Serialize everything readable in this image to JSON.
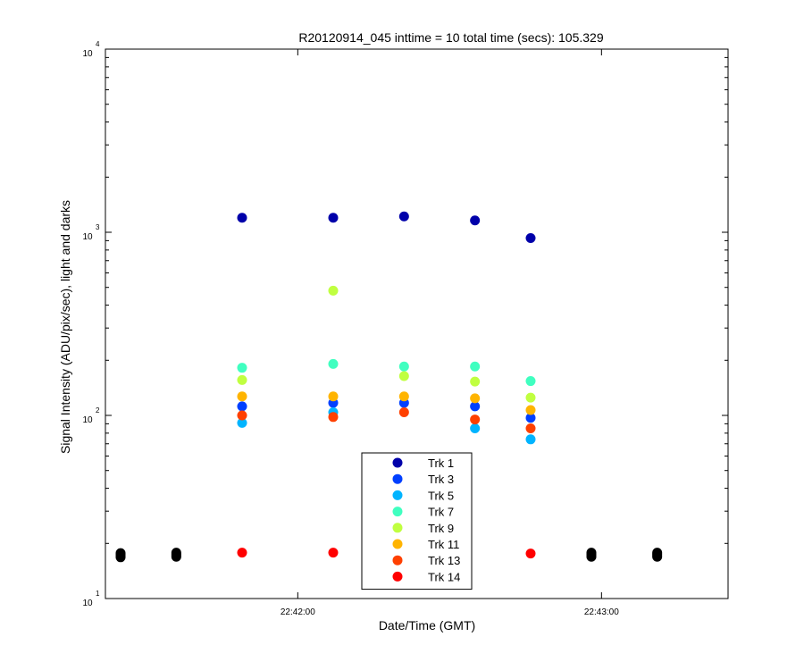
{
  "chart_data": {
    "type": "scatter",
    "title": "R20120914_045 inttime = 10 total time (secs): 105.329",
    "xlabel": "Date/Time (GMT)",
    "ylabel": "Signal Intensity (ADU/pix/sec), light and darks",
    "x_ticks": [
      "22:42:00",
      "22:43:00"
    ],
    "xlim": [
      "22:41:22",
      "22:43:25"
    ],
    "y_scale": "log",
    "ylim": [
      10,
      10000
    ],
    "y_ticks": [
      {
        "value": 10,
        "base": "10",
        "exp": "1"
      },
      {
        "value": 100,
        "base": "10",
        "exp": "2"
      },
      {
        "value": 1000,
        "base": "10",
        "exp": "3"
      },
      {
        "value": 10000,
        "base": "10",
        "exp": "4"
      }
    ],
    "grid": false,
    "legend_position": "bottom-center",
    "series": [
      {
        "name": "Trk 1",
        "color": "#0000aa",
        "x": [
          "22:41:49",
          "22:42:07",
          "22:42:21",
          "22:42:35",
          "22:42:46"
        ],
        "y": [
          1200,
          1200,
          1220,
          1160,
          930
        ]
      },
      {
        "name": "Trk 3",
        "color": "#0040ff",
        "x": [
          "22:41:49",
          "22:42:07",
          "22:42:21",
          "22:42:35",
          "22:42:46"
        ],
        "y": [
          112,
          117,
          117,
          112,
          97
        ]
      },
      {
        "name": "Trk 5",
        "color": "#00b4ff",
        "x": [
          "22:41:49",
          "22:42:07",
          "22:42:35",
          "22:42:46"
        ],
        "y": [
          91,
          104,
          85,
          74
        ]
      },
      {
        "name": "Trk 7",
        "color": "#40ffc0",
        "x": [
          "22:41:49",
          "22:42:07",
          "22:42:21",
          "22:42:35",
          "22:42:46"
        ],
        "y": [
          182,
          191,
          185,
          185,
          154
        ]
      },
      {
        "name": "Trk 9",
        "color": "#c0ff40",
        "x": [
          "22:41:49",
          "22:42:07",
          "22:42:21",
          "22:42:35",
          "22:42:46"
        ],
        "y": [
          156,
          480,
          164,
          153,
          125
        ]
      },
      {
        "name": "Trk 11",
        "color": "#ffb400",
        "x": [
          "22:41:49",
          "22:42:07",
          "22:42:21",
          "22:42:35",
          "22:42:46"
        ],
        "y": [
          127,
          127,
          127,
          124,
          107
        ]
      },
      {
        "name": "Trk 13",
        "color": "#ff4000",
        "x": [
          "22:41:49",
          "22:42:07",
          "22:42:21",
          "22:42:35",
          "22:42:46"
        ],
        "y": [
          100,
          98,
          104,
          95,
          85
        ]
      },
      {
        "name": "Trk 14",
        "color": "#ff0000",
        "x": [
          "22:41:49",
          "22:42:07",
          "22:42:46"
        ],
        "y": [
          17.8,
          17.8,
          17.6
        ]
      },
      {
        "color": "#000000",
        "x": [
          "22:41:25",
          "22:41:25",
          "22:41:25",
          "22:41:25",
          "22:41:36",
          "22:41:36",
          "22:41:36",
          "22:41:36",
          "22:42:58",
          "22:42:58",
          "22:42:58",
          "22:42:58",
          "22:43:11",
          "22:43:11",
          "22:43:11",
          "22:43:11"
        ],
        "y": [
          16.8,
          17.1,
          17.4,
          17.7,
          16.9,
          17.2,
          17.5,
          17.8,
          16.9,
          17.2,
          17.5,
          17.8,
          16.9,
          17.2,
          17.5,
          17.8
        ]
      }
    ]
  }
}
